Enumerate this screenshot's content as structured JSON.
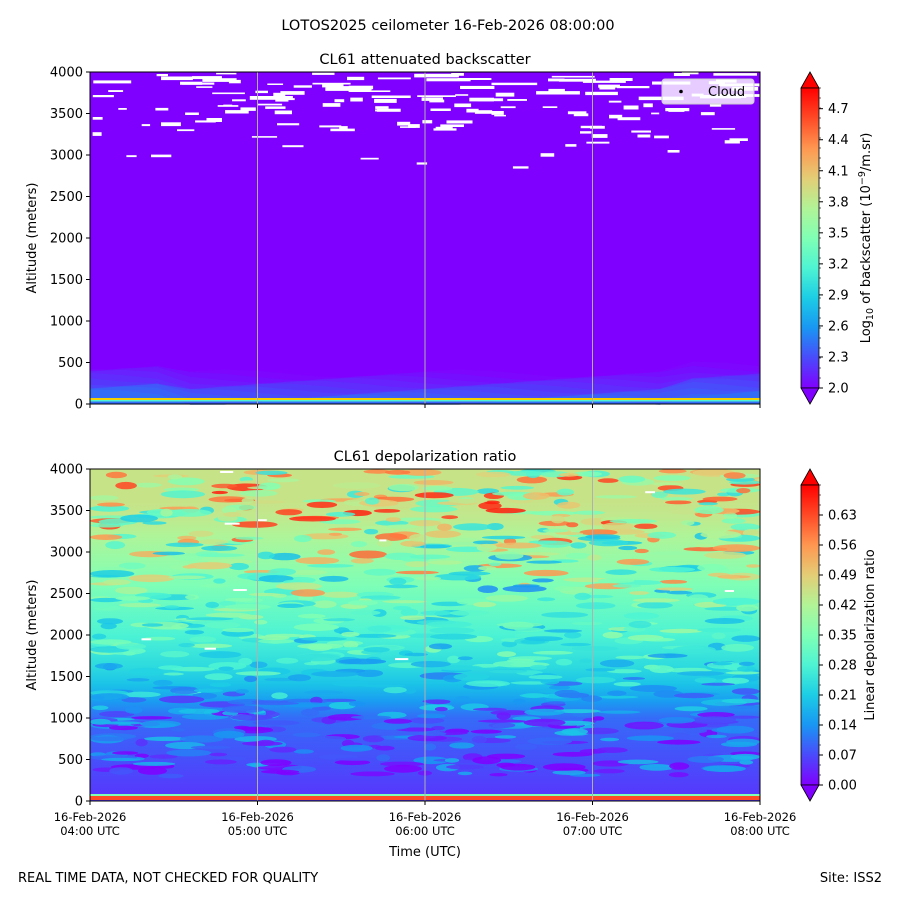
{
  "suptitle": "LOTOS2025 ceilometer 16-Feb-2026 08:00:00",
  "footer": {
    "left": "REAL TIME DATA, NOT CHECKED FOR QUALITY",
    "right": "Site: ISS2"
  },
  "chart_data": [
    {
      "type": "heatmap",
      "title": "CL61 attenuated backscatter",
      "ylabel": "Altitude (meters)",
      "xlabel": "",
      "ylim": [
        0,
        4000
      ],
      "yticks": [
        0,
        500,
        1000,
        1500,
        2000,
        2500,
        3000,
        3500,
        4000
      ],
      "x_range": [
        "04:00",
        "08:00"
      ],
      "x_vertical_gridlines": [
        "05:00",
        "06:00",
        "07:00"
      ],
      "x_tick_labels_shown": false,
      "colormap": "rainbow",
      "legend": {
        "entries": [
          "Cloud"
        ],
        "placement": "upper right"
      },
      "colorbar": {
        "label_pre": "Log",
        "label_sub": "10",
        "label_mid": " of backscatter (10",
        "label_sup": "−9",
        "label_post": "/m.sr)",
        "range": [
          2.0,
          4.9
        ],
        "ticks": [
          "2.0",
          "2.3",
          "2.6",
          "2.9",
          "3.2",
          "3.5",
          "3.8",
          "4.1",
          "4.4",
          "4.7"
        ],
        "extend": "both"
      },
      "description_values": {
        "background_level": 2.0,
        "surface_layer_altitude_max": 400,
        "cloud_hits_altitude_range": [
          2800,
          4000
        ]
      }
    },
    {
      "type": "heatmap",
      "title": "CL61 depolarization ratio",
      "ylabel": "Altitude (meters)",
      "xlabel": "Time (UTC)",
      "ylim": [
        0,
        4000
      ],
      "yticks": [
        0,
        500,
        1000,
        1500,
        2000,
        2500,
        3000,
        3500,
        4000
      ],
      "x_range": [
        "04:00",
        "08:00"
      ],
      "x_vertical_gridlines": [
        "05:00",
        "06:00",
        "07:00"
      ],
      "x_tick_labels": [
        [
          "16-Feb-2026",
          "04:00 UTC"
        ],
        [
          "16-Feb-2026",
          "05:00 UTC"
        ],
        [
          "16-Feb-2026",
          "06:00 UTC"
        ],
        [
          "16-Feb-2026",
          "07:00 UTC"
        ],
        [
          "16-Feb-2026",
          "08:00 UTC"
        ]
      ],
      "colormap": "rainbow",
      "colorbar": {
        "label": "Linear depolarization ratio",
        "range": [
          0.0,
          0.7
        ],
        "ticks": [
          "0.00",
          "0.07",
          "0.14",
          "0.21",
          "0.28",
          "0.35",
          "0.42",
          "0.49",
          "0.56",
          "0.63"
        ],
        "extend": "both"
      },
      "description_values": {
        "low_altitude_level": 0.05,
        "mid_altitude_level_1500m": 0.22,
        "upper_altitude_level_3500m": 0.45
      }
    }
  ],
  "colors": {
    "rainbow_stops": [
      "#8000ff",
      "#4a4afb",
      "#1996f3",
      "#1ccde5",
      "#4ef4d3",
      "#80ffb4",
      "#b2f396",
      "#e4cd76",
      "#ff9650",
      "#ff4a26",
      "#ff0000"
    ],
    "gridline": "#b0b0b0",
    "cloud": "#ffffff"
  }
}
